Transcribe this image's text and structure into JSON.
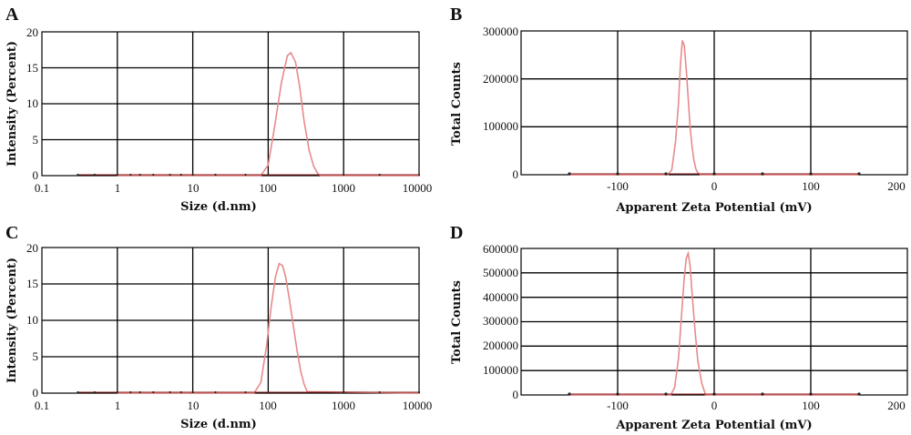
{
  "figure": {
    "panels": [
      "A",
      "B",
      "C",
      "D"
    ]
  },
  "chart_data": [
    {
      "panel": "A",
      "type": "line",
      "title": "",
      "xlabel": "Size (d.nm)",
      "ylabel": "Intensity (Percent)",
      "xscale": "log",
      "xlim": [
        0.1,
        10000
      ],
      "ylim": [
        0,
        20
      ],
      "xticks": [
        "0.1",
        "1",
        "10",
        "100",
        "1000",
        "10000"
      ],
      "yticks": [
        "0",
        "5",
        "10",
        "15",
        "20"
      ],
      "grid": true,
      "line_color": "#e88a8a",
      "series": [
        {
          "x": [
            1,
            80,
            100,
            120,
            150,
            180,
            200,
            230,
            260,
            300,
            350,
            400,
            460,
            500,
            10000
          ],
          "values": [
            0,
            0,
            1.5,
            6.5,
            13,
            16.7,
            17.1,
            15.8,
            12.5,
            7.5,
            3.5,
            1.3,
            0.2,
            0,
            0
          ]
        }
      ]
    },
    {
      "panel": "B",
      "type": "line",
      "title": "",
      "xlabel": "Apparent Zeta Potential (mV)",
      "ylabel": "Total Counts",
      "xscale": "linear",
      "xlim": [
        -200,
        200
      ],
      "ylim": [
        0,
        300000
      ],
      "xticks": [
        "-100",
        "0",
        "100",
        "200"
      ],
      "yticks": [
        "0",
        "100000",
        "200000",
        "300000"
      ],
      "grid": true,
      "line_color": "#e88a8a",
      "series": [
        {
          "x": [
            -150,
            -48,
            -44,
            -40,
            -37,
            -35,
            -33,
            -31,
            -29,
            -27,
            -25,
            -23,
            -21,
            -19,
            -17,
            -14,
            150
          ],
          "values": [
            0,
            0,
            10000,
            70000,
            150000,
            230000,
            280000,
            270000,
            220000,
            160000,
            100000,
            60000,
            30000,
            12000,
            4000,
            0,
            0
          ]
        }
      ]
    },
    {
      "panel": "C",
      "type": "line",
      "title": "",
      "xlabel": "Size (d.nm)",
      "ylabel": "Intensity (Percent)",
      "xscale": "log",
      "xlim": [
        0.1,
        10000
      ],
      "ylim": [
        0,
        20
      ],
      "xticks": [
        "0.1",
        "1",
        "10",
        "100",
        "1000",
        "10000"
      ],
      "yticks": [
        "0",
        "5",
        "10",
        "15",
        "20"
      ],
      "grid": true,
      "line_color": "#e88a8a",
      "series": [
        {
          "x": [
            1,
            65,
            80,
            95,
            110,
            125,
            140,
            155,
            170,
            190,
            210,
            240,
            270,
            300,
            330,
            10000
          ],
          "values": [
            0,
            0,
            1.5,
            6.5,
            12,
            16,
            17.8,
            17.5,
            16,
            13,
            10,
            6,
            3,
            1.2,
            0.2,
            0
          ]
        }
      ]
    },
    {
      "panel": "D",
      "type": "line",
      "title": "",
      "xlabel": "Apparent Zeta Potential (mV)",
      "ylabel": "Total Counts",
      "xscale": "linear",
      "xlim": [
        -200,
        200
      ],
      "ylim": [
        0,
        600000
      ],
      "xticks": [
        "-100",
        "0",
        "100",
        "200"
      ],
      "yticks": [
        "0",
        "100000",
        "200000",
        "300000",
        "400000",
        "500000",
        "600000"
      ],
      "grid": true,
      "line_color": "#e88a8a",
      "series": [
        {
          "x": [
            -150,
            -45,
            -41,
            -37,
            -34,
            -31,
            -29,
            -27,
            -25,
            -23,
            -20,
            -17,
            -13,
            -9,
            150
          ],
          "values": [
            0,
            0,
            30000,
            150000,
            320000,
            480000,
            560000,
            580000,
            530000,
            420000,
            270000,
            140000,
            50000,
            0,
            0
          ]
        }
      ]
    }
  ]
}
